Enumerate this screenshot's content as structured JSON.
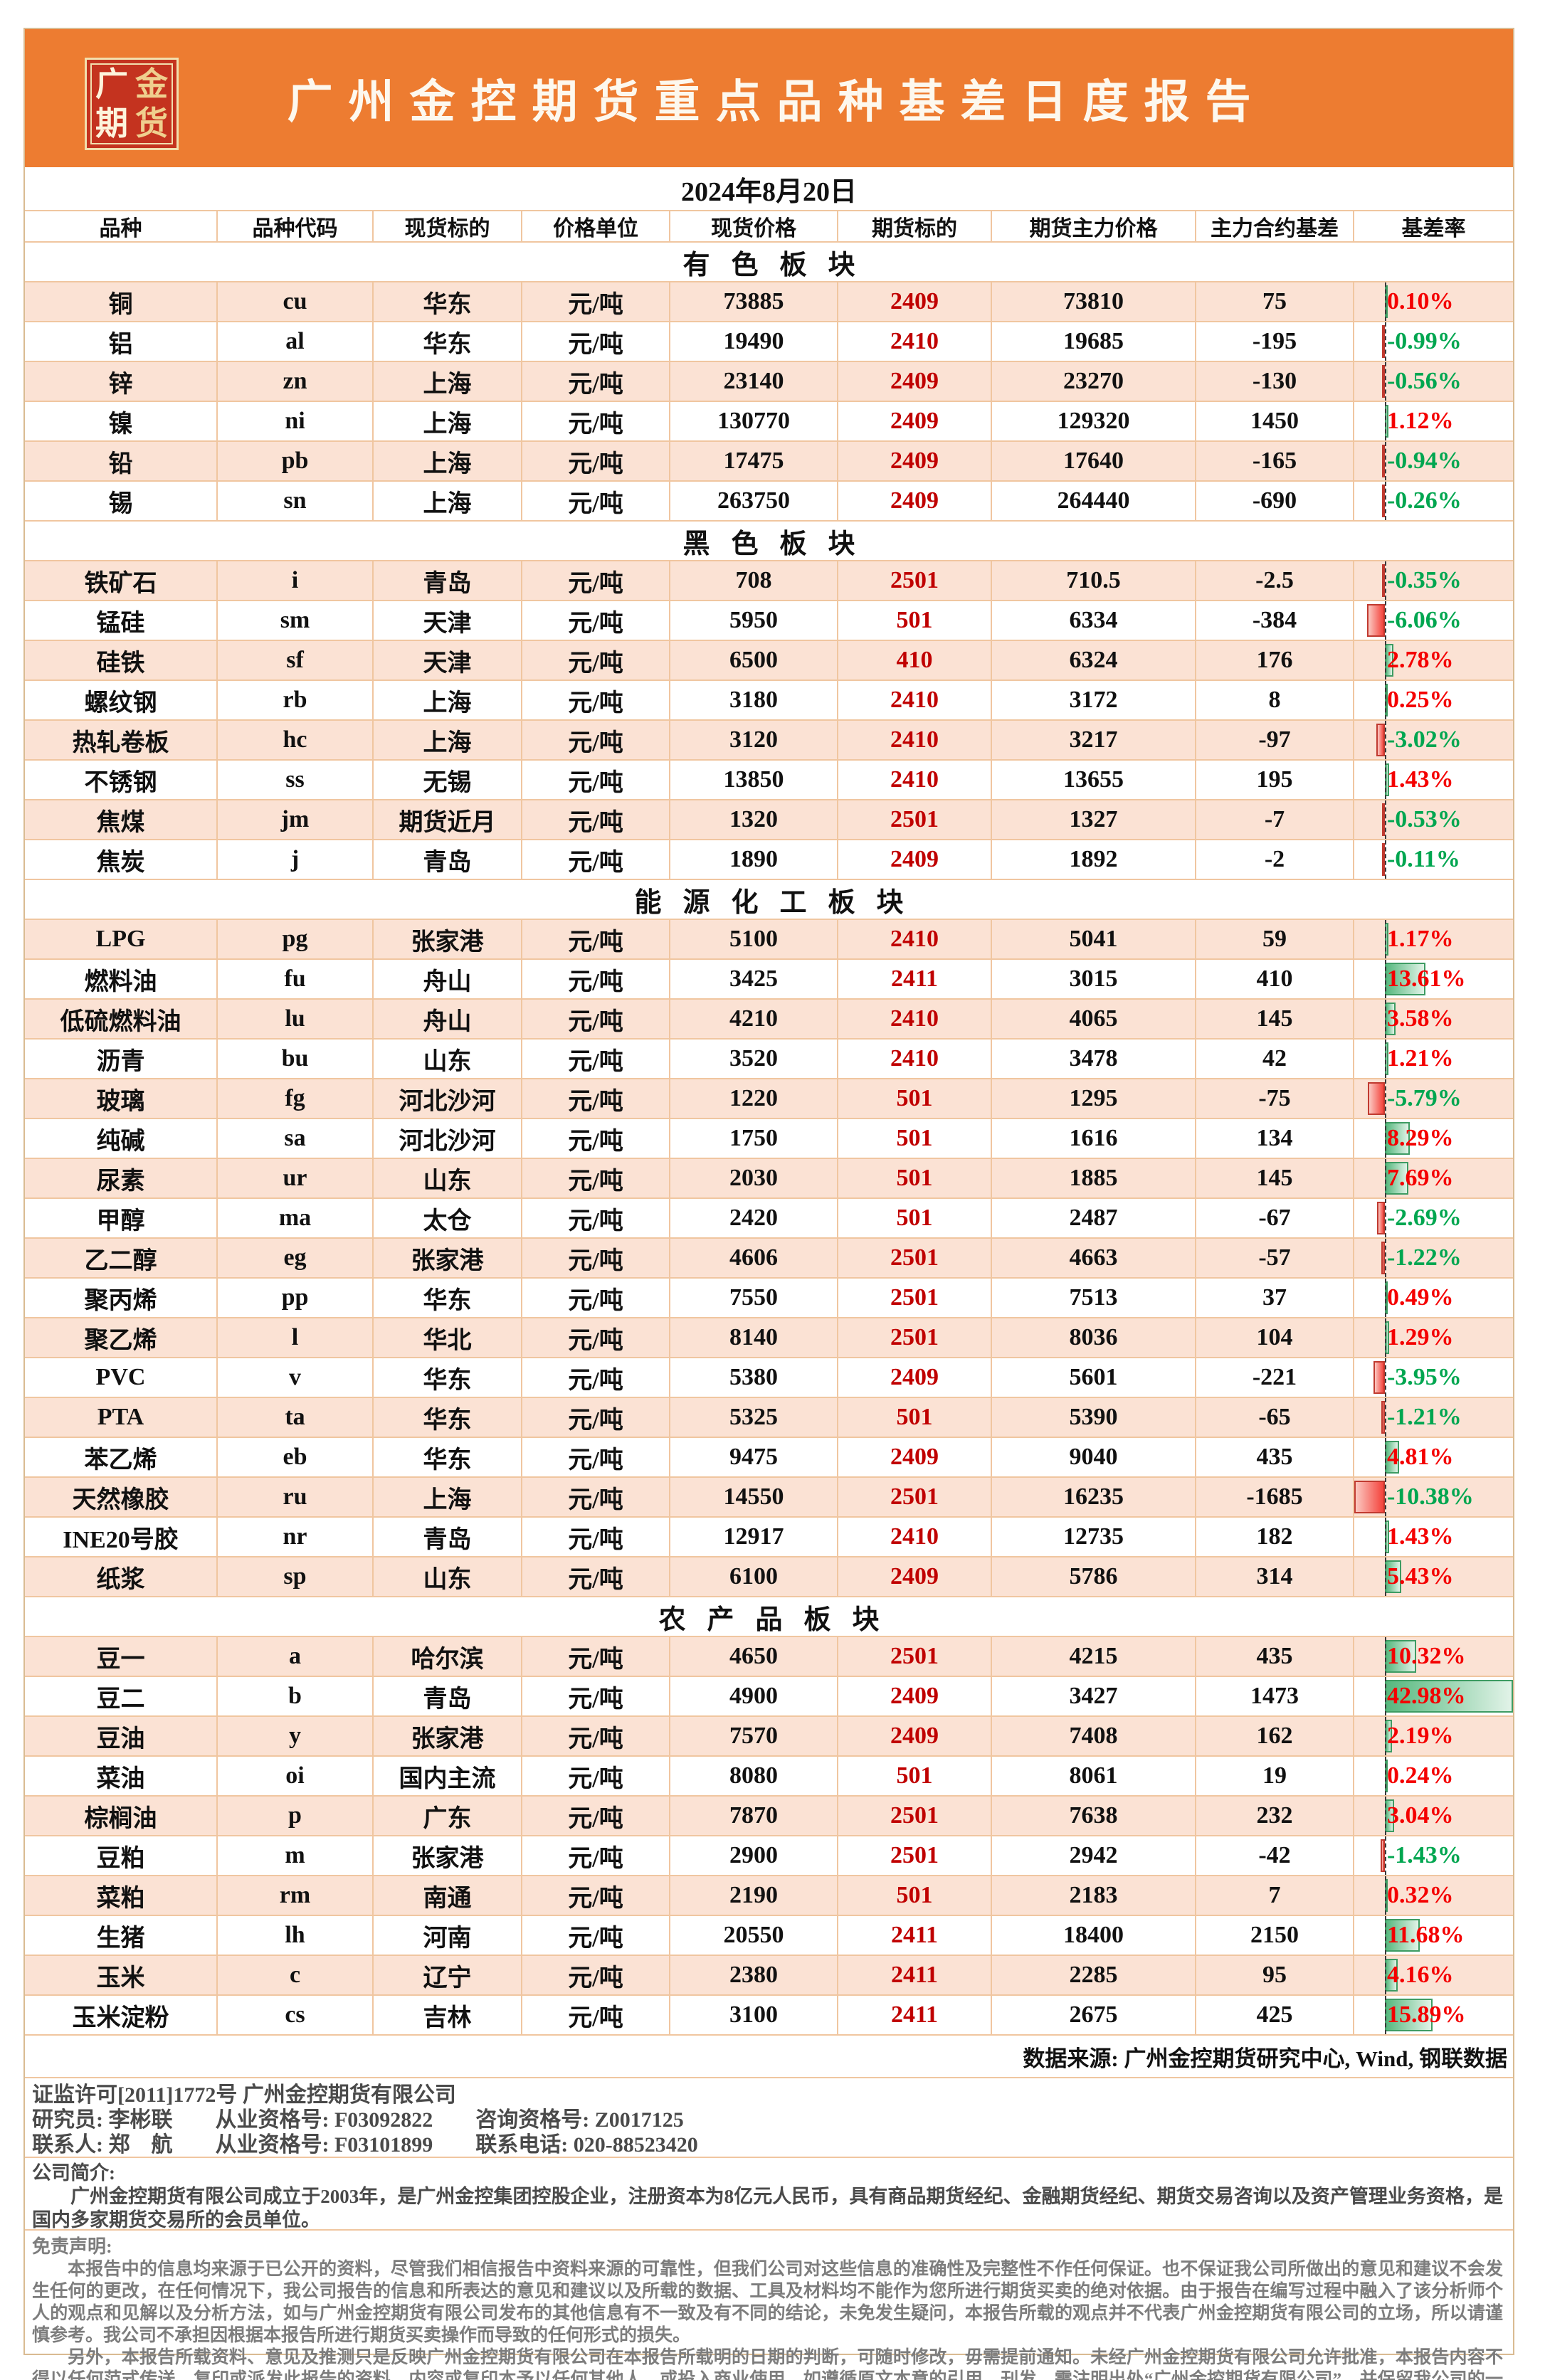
{
  "report": {
    "title": "广州金控期货重点品种基差日度报告",
    "date": "2024年8月20日",
    "source_note": "数据来源: 广州金控期货研究中心, Wind, 钢联数据"
  },
  "logo": {
    "chars": [
      "广",
      "金",
      "期",
      "货"
    ]
  },
  "colors": {
    "header_orange": "#ED7C31",
    "row_peach": "#FBE2D4",
    "grid_border": "#F0C6A0",
    "contract_red": "#C00000",
    "positive_rate_red": "#F40000",
    "negative_rate_green": "#00A650",
    "bar_positive_green": "#56B87E",
    "bar_negative_red": "#F4423B",
    "logo_red": "#C4331F",
    "logo_gold": "#EFCF8E"
  },
  "table": {
    "columns": [
      "品种",
      "品种代码",
      "现货标的",
      "价格单位",
      "现货价格",
      "期货标的",
      "期货主力价格",
      "主力合约基差",
      "基差率"
    ],
    "sections": [
      {
        "name": "有色板块",
        "rows": [
          {
            "variety": "铜",
            "code": "cu",
            "spot": "华东",
            "unit": "元/吨",
            "spot_price": "73885",
            "contract": "2409",
            "futures_price": "73810",
            "basis": "75",
            "rate": "0.10%",
            "rate_value": 0.1
          },
          {
            "variety": "铝",
            "code": "al",
            "spot": "华东",
            "unit": "元/吨",
            "spot_price": "19490",
            "contract": "2410",
            "futures_price": "19685",
            "basis": "-195",
            "rate": "-0.99%",
            "rate_value": -0.99
          },
          {
            "variety": "锌",
            "code": "zn",
            "spot": "上海",
            "unit": "元/吨",
            "spot_price": "23140",
            "contract": "2409",
            "futures_price": "23270",
            "basis": "-130",
            "rate": "-0.56%",
            "rate_value": -0.56
          },
          {
            "variety": "镍",
            "code": "ni",
            "spot": "上海",
            "unit": "元/吨",
            "spot_price": "130770",
            "contract": "2409",
            "futures_price": "129320",
            "basis": "1450",
            "rate": "1.12%",
            "rate_value": 1.12
          },
          {
            "variety": "铅",
            "code": "pb",
            "spot": "上海",
            "unit": "元/吨",
            "spot_price": "17475",
            "contract": "2409",
            "futures_price": "17640",
            "basis": "-165",
            "rate": "-0.94%",
            "rate_value": -0.94
          },
          {
            "variety": "锡",
            "code": "sn",
            "spot": "上海",
            "unit": "元/吨",
            "spot_price": "263750",
            "contract": "2409",
            "futures_price": "264440",
            "basis": "-690",
            "rate": "-0.26%",
            "rate_value": -0.26
          }
        ]
      },
      {
        "name": "黑色板块",
        "rows": [
          {
            "variety": "铁矿石",
            "code": "i",
            "spot": "青岛",
            "unit": "元/吨",
            "spot_price": "708",
            "contract": "2501",
            "futures_price": "710.5",
            "basis": "-2.5",
            "rate": "-0.35%",
            "rate_value": -0.35
          },
          {
            "variety": "锰硅",
            "code": "sm",
            "spot": "天津",
            "unit": "元/吨",
            "spot_price": "5950",
            "contract": "501",
            "futures_price": "6334",
            "basis": "-384",
            "rate": "-6.06%",
            "rate_value": -6.06
          },
          {
            "variety": "硅铁",
            "code": "sf",
            "spot": "天津",
            "unit": "元/吨",
            "spot_price": "6500",
            "contract": "410",
            "futures_price": "6324",
            "basis": "176",
            "rate": "2.78%",
            "rate_value": 2.78
          },
          {
            "variety": "螺纹钢",
            "code": "rb",
            "spot": "上海",
            "unit": "元/吨",
            "spot_price": "3180",
            "contract": "2410",
            "futures_price": "3172",
            "basis": "8",
            "rate": "0.25%",
            "rate_value": 0.25
          },
          {
            "variety": "热轧卷板",
            "code": "hc",
            "spot": "上海",
            "unit": "元/吨",
            "spot_price": "3120",
            "contract": "2410",
            "futures_price": "3217",
            "basis": "-97",
            "rate": "-3.02%",
            "rate_value": -3.02
          },
          {
            "variety": "不锈钢",
            "code": "ss",
            "spot": "无锡",
            "unit": "元/吨",
            "spot_price": "13850",
            "contract": "2410",
            "futures_price": "13655",
            "basis": "195",
            "rate": "1.43%",
            "rate_value": 1.43
          },
          {
            "variety": "焦煤",
            "code": "jm",
            "spot": "期货近月",
            "unit": "元/吨",
            "spot_price": "1320",
            "contract": "2501",
            "futures_price": "1327",
            "basis": "-7",
            "rate": "-0.53%",
            "rate_value": -0.53
          },
          {
            "variety": "焦炭",
            "code": "j",
            "spot": "青岛",
            "unit": "元/吨",
            "spot_price": "1890",
            "contract": "2409",
            "futures_price": "1892",
            "basis": "-2",
            "rate": "-0.11%",
            "rate_value": -0.11
          }
        ]
      },
      {
        "name": "能源化工板块",
        "rows": [
          {
            "variety": "LPG",
            "code": "pg",
            "spot": "张家港",
            "unit": "元/吨",
            "spot_price": "5100",
            "contract": "2410",
            "futures_price": "5041",
            "basis": "59",
            "rate": "1.17%",
            "rate_value": 1.17
          },
          {
            "variety": "燃料油",
            "code": "fu",
            "spot": "舟山",
            "unit": "元/吨",
            "spot_price": "3425",
            "contract": "2411",
            "futures_price": "3015",
            "basis": "410",
            "rate": "13.61%",
            "rate_value": 13.61
          },
          {
            "variety": "低硫燃料油",
            "code": "lu",
            "spot": "舟山",
            "unit": "元/吨",
            "spot_price": "4210",
            "contract": "2410",
            "futures_price": "4065",
            "basis": "145",
            "rate": "3.58%",
            "rate_value": 3.58
          },
          {
            "variety": "沥青",
            "code": "bu",
            "spot": "山东",
            "unit": "元/吨",
            "spot_price": "3520",
            "contract": "2410",
            "futures_price": "3478",
            "basis": "42",
            "rate": "1.21%",
            "rate_value": 1.21
          },
          {
            "variety": "玻璃",
            "code": "fg",
            "spot": "河北沙河",
            "unit": "元/吨",
            "spot_price": "1220",
            "contract": "501",
            "futures_price": "1295",
            "basis": "-75",
            "rate": "-5.79%",
            "rate_value": -5.79
          },
          {
            "variety": "纯碱",
            "code": "sa",
            "spot": "河北沙河",
            "unit": "元/吨",
            "spot_price": "1750",
            "contract": "501",
            "futures_price": "1616",
            "basis": "134",
            "rate": "8.29%",
            "rate_value": 8.29
          },
          {
            "variety": "尿素",
            "code": "ur",
            "spot": "山东",
            "unit": "元/吨",
            "spot_price": "2030",
            "contract": "501",
            "futures_price": "1885",
            "basis": "145",
            "rate": "7.69%",
            "rate_value": 7.69
          },
          {
            "variety": "甲醇",
            "code": "ma",
            "spot": "太仓",
            "unit": "元/吨",
            "spot_price": "2420",
            "contract": "501",
            "futures_price": "2487",
            "basis": "-67",
            "rate": "-2.69%",
            "rate_value": -2.69
          },
          {
            "variety": "乙二醇",
            "code": "eg",
            "spot": "张家港",
            "unit": "元/吨",
            "spot_price": "4606",
            "contract": "2501",
            "futures_price": "4663",
            "basis": "-57",
            "rate": "-1.22%",
            "rate_value": -1.22
          },
          {
            "variety": "聚丙烯",
            "code": "pp",
            "spot": "华东",
            "unit": "元/吨",
            "spot_price": "7550",
            "contract": "2501",
            "futures_price": "7513",
            "basis": "37",
            "rate": "0.49%",
            "rate_value": 0.49
          },
          {
            "variety": "聚乙烯",
            "code": "l",
            "spot": "华北",
            "unit": "元/吨",
            "spot_price": "8140",
            "contract": "2501",
            "futures_price": "8036",
            "basis": "104",
            "rate": "1.29%",
            "rate_value": 1.29
          },
          {
            "variety": "PVC",
            "code": "v",
            "spot": "华东",
            "unit": "元/吨",
            "spot_price": "5380",
            "contract": "2409",
            "futures_price": "5601",
            "basis": "-221",
            "rate": "-3.95%",
            "rate_value": -3.95
          },
          {
            "variety": "PTA",
            "code": "ta",
            "spot": "华东",
            "unit": "元/吨",
            "spot_price": "5325",
            "contract": "501",
            "futures_price": "5390",
            "basis": "-65",
            "rate": "-1.21%",
            "rate_value": -1.21
          },
          {
            "variety": "苯乙烯",
            "code": "eb",
            "spot": "华东",
            "unit": "元/吨",
            "spot_price": "9475",
            "contract": "2409",
            "futures_price": "9040",
            "basis": "435",
            "rate": "4.81%",
            "rate_value": 4.81
          },
          {
            "variety": "天然橡胶",
            "code": "ru",
            "spot": "上海",
            "unit": "元/吨",
            "spot_price": "14550",
            "contract": "2501",
            "futures_price": "16235",
            "basis": "-1685",
            "rate": "-10.38%",
            "rate_value": -10.38
          },
          {
            "variety": "INE20号胶",
            "code": "nr",
            "spot": "青岛",
            "unit": "元/吨",
            "spot_price": "12917",
            "contract": "2410",
            "futures_price": "12735",
            "basis": "182",
            "rate": "1.43%",
            "rate_value": 1.43
          },
          {
            "variety": "纸浆",
            "code": "sp",
            "spot": "山东",
            "unit": "元/吨",
            "spot_price": "6100",
            "contract": "2409",
            "futures_price": "5786",
            "basis": "314",
            "rate": "5.43%",
            "rate_value": 5.43
          }
        ]
      },
      {
        "name": "农产品板块",
        "rows": [
          {
            "variety": "豆一",
            "code": "a",
            "spot": "哈尔滨",
            "unit": "元/吨",
            "spot_price": "4650",
            "contract": "2501",
            "futures_price": "4215",
            "basis": "435",
            "rate": "10.32%",
            "rate_value": 10.32
          },
          {
            "variety": "豆二",
            "code": "b",
            "spot": "青岛",
            "unit": "元/吨",
            "spot_price": "4900",
            "contract": "2409",
            "futures_price": "3427",
            "basis": "1473",
            "rate": "42.98%",
            "rate_value": 42.98
          },
          {
            "variety": "豆油",
            "code": "y",
            "spot": "张家港",
            "unit": "元/吨",
            "spot_price": "7570",
            "contract": "2409",
            "futures_price": "7408",
            "basis": "162",
            "rate": "2.19%",
            "rate_value": 2.19
          },
          {
            "variety": "菜油",
            "code": "oi",
            "spot": "国内主流",
            "unit": "元/吨",
            "spot_price": "8080",
            "contract": "501",
            "futures_price": "8061",
            "basis": "19",
            "rate": "0.24%",
            "rate_value": 0.24
          },
          {
            "variety": "棕榈油",
            "code": "p",
            "spot": "广东",
            "unit": "元/吨",
            "spot_price": "7870",
            "contract": "2501",
            "futures_price": "7638",
            "basis": "232",
            "rate": "3.04%",
            "rate_value": 3.04
          },
          {
            "variety": "豆粕",
            "code": "m",
            "spot": "张家港",
            "unit": "元/吨",
            "spot_price": "2900",
            "contract": "2501",
            "futures_price": "2942",
            "basis": "-42",
            "rate": "-1.43%",
            "rate_value": -1.43
          },
          {
            "variety": "菜粕",
            "code": "rm",
            "spot": "南通",
            "unit": "元/吨",
            "spot_price": "2190",
            "contract": "501",
            "futures_price": "2183",
            "basis": "7",
            "rate": "0.32%",
            "rate_value": 0.32
          },
          {
            "variety": "生猪",
            "code": "lh",
            "spot": "河南",
            "unit": "元/吨",
            "spot_price": "20550",
            "contract": "2411",
            "futures_price": "18400",
            "basis": "2150",
            "rate": "11.68%",
            "rate_value": 11.68
          },
          {
            "variety": "玉米",
            "code": "c",
            "spot": "辽宁",
            "unit": "元/吨",
            "spot_price": "2380",
            "contract": "2411",
            "futures_price": "2285",
            "basis": "95",
            "rate": "4.16%",
            "rate_value": 4.16
          },
          {
            "variety": "玉米淀粉",
            "code": "cs",
            "spot": "吉林",
            "unit": "元/吨",
            "spot_price": "3100",
            "contract": "2411",
            "futures_price": "2675",
            "basis": "425",
            "rate": "15.89%",
            "rate_value": 15.89
          }
        ]
      }
    ]
  },
  "footer": {
    "license_line": "证监许可[2011]1772号 广州金控期货有限公司",
    "researcher_line": "研究员: 李彬联　　从业资格号: F03092822　　咨询资格号: Z0017125",
    "contact_line": "联系人: 郑　航　　从业资格号: F03101899　　联系电话: 020-88523420",
    "company_intro_title": "公司简介:",
    "company_intro": "广州金控期货有限公司成立于2003年，是广州金控集团控股企业，注册资本为8亿元人民币，具有商品期货经纪、金融期货经纪、期货交易咨询以及资产管理业务资格，是国内多家期货交易所的会员单位。",
    "disclaimer_title": "免责声明:",
    "disclaimer_p1": "本报告中的信息均来源于已公开的资料，尽管我们相信报告中资料来源的可靠性，但我们公司对这些信息的准确性及完整性不作任何保证。也不保证我公司所做出的意见和建议不会发生任何的更改，在任何情况下，我公司报告的信息和所表达的意见和建议以及所载的数据、工具及材料均不能作为您所进行期货买卖的绝对依据。由于报告在编写过程中融入了该分析师个人的观点和见解以及分析方法，如与广州金控期货有限公司发布的其他信息有不一致及有不同的结论，未免发生疑问，本报告所载的观点并不代表广州金控期货有限公司的立场，所以请谨慎参考。我公司不承担因根据本报告所进行期货买卖操作而导致的任何形式的损失。",
    "disclaimer_p2": "另外，本报告所载资料、意见及推测只是反映广州金控期货有限公司在本报告所载明的日期的判断，可随时修改，毋需提前通知。未经广州金控期货有限公司允许批准，本报告内容不得以任何范式传送、复印或派发此报告的资料、内容或复印本予以任何其他人，或投入商业使用。如遵循原文本意的引用、刊发，需注明出处“广州金控期货有限公司”，并保留我公司的一切权利。"
  }
}
